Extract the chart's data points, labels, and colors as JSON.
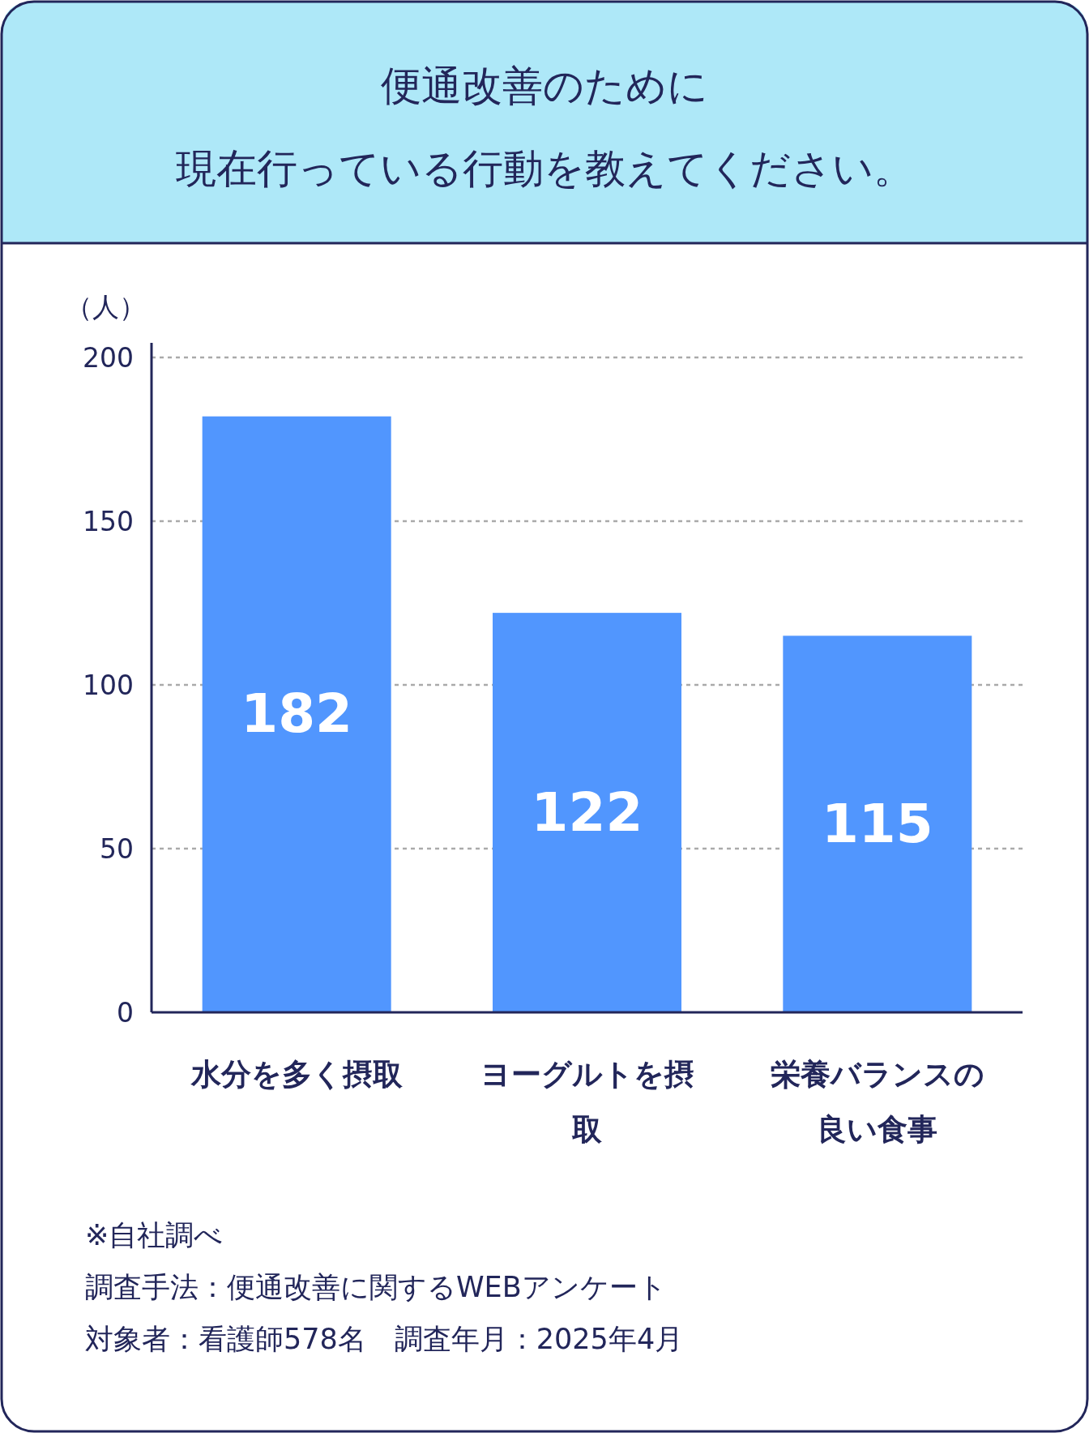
{
  "chart_data": {
    "type": "bar",
    "title": "便通改善のために",
    "subtitle": "現在行っている行動を教えてください。",
    "ylabel": "（人）",
    "categories": [
      "水分を多く摂取",
      "ヨーグルトを摂取",
      "栄養バランスの良い食事"
    ],
    "values": [
      182,
      122,
      115
    ],
    "color": "#5196fe",
    "data_labels": true,
    "ylim": [
      0,
      200
    ],
    "yticks": [
      0,
      50,
      100,
      150,
      200
    ],
    "grid": "y",
    "annotations": [
      "※自社調べ",
      "調査手法：便通改善に関するWEBアンケート",
      "対象者：看護師578名　調査年月：2025年4月"
    ]
  }
}
